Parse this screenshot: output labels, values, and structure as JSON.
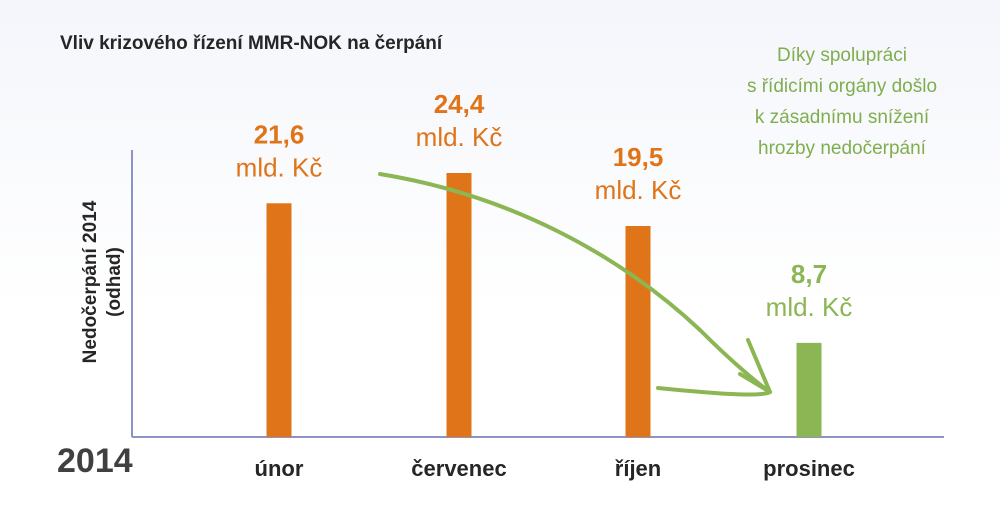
{
  "title": "Vliv krizového řízení MMR-NOK na čerpání",
  "year_label": "2014",
  "note": [
    "Díky spolupráci",
    "s řídicími orgány došlo",
    "k zásadnímu snížení",
    "hrozby nedočerpání"
  ],
  "colors": {
    "orange": "#e07418",
    "green": "#8bb653",
    "axis": "#8e92c4",
    "text": "#262626"
  },
  "chart_data": {
    "type": "bar",
    "title": "Vliv krizového řízení MMR-NOK na čerpání",
    "ylabel_lines": [
      "Nedočerpání 2014",
      "(odhad)"
    ],
    "xlabel": "",
    "categories": [
      "únor",
      "červenec",
      "říjen",
      "prosinec"
    ],
    "values": [
      21.6,
      24.4,
      19.5,
      8.7
    ],
    "value_labels": [
      "21,6",
      "24,4",
      "19,5",
      "8,7"
    ],
    "unit": "mld. Kč",
    "bar_colors": [
      "#e07418",
      "#e07418",
      "#e07418",
      "#8bb653"
    ],
    "ylim": [
      0,
      24.4
    ],
    "grid": false,
    "legend": "none"
  }
}
